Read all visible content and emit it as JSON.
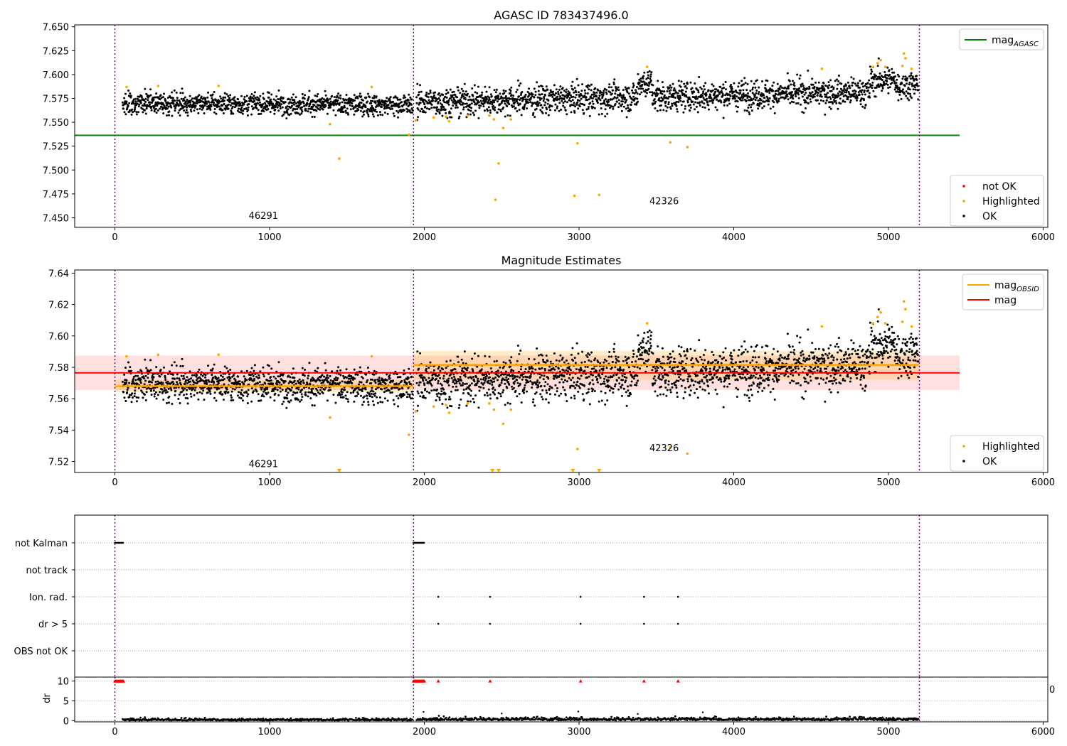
{
  "figure": {
    "title_top": "AGASC ID 783437496.0",
    "title_mid": "Magnitude Estimates"
  },
  "chart_data": [
    {
      "type": "scatter",
      "title": "AGASC ID 783437496.0",
      "xlabel": "",
      "ylabel": "",
      "xlim": [
        -260,
        6030
      ],
      "ylim": [
        7.44,
        7.652
      ],
      "xticks": [
        0,
        1000,
        2000,
        3000,
        4000,
        5000,
        6000
      ],
      "yticks": [
        7.45,
        7.475,
        7.5,
        7.525,
        7.55,
        7.575,
        7.6,
        7.625,
        7.65
      ],
      "ytick_labels": [
        "7.450",
        "7.475",
        "7.500",
        "7.525",
        "7.550",
        "7.575",
        "7.600",
        "7.625",
        "7.650"
      ],
      "grid": false,
      "vlines": [
        0,
        1930,
        5200
      ],
      "obsid_labels": [
        {
          "x": 960,
          "y": 7.449,
          "text": "46291"
        },
        {
          "x": 3550,
          "y": 7.464,
          "text": "42326"
        }
      ],
      "series": [
        {
          "name": "mag_AGASC",
          "kind": "hline",
          "y": 7.5363,
          "x_range": [
            -260,
            5460
          ],
          "color": "#008000"
        },
        {
          "name": "not OK",
          "kind": "points",
          "color": "#ff0000",
          "points": []
        },
        {
          "name": "Highlighted",
          "kind": "points",
          "color": "#ffa500",
          "points": [
            [
              75,
              7.587
            ],
            [
              280,
              7.588
            ],
            [
              670,
              7.588
            ],
            [
              1390,
              7.548
            ],
            [
              1450,
              7.512
            ],
            [
              1660,
              7.587
            ],
            [
              1900,
              7.537
            ],
            [
              1945,
              7.552
            ],
            [
              2060,
              7.555
            ],
            [
              2140,
              7.556
            ],
            [
              2160,
              7.551
            ],
            [
              2280,
              7.557
            ],
            [
              2420,
              7.557
            ],
            [
              2450,
              7.553
            ],
            [
              2460,
              7.469
            ],
            [
              2480,
              7.507
            ],
            [
              2510,
              7.544
            ],
            [
              2560,
              7.553
            ],
            [
              2970,
              7.473
            ],
            [
              2990,
              7.528
            ],
            [
              3130,
              7.474
            ],
            [
              3440,
              7.608
            ],
            [
              3590,
              7.529
            ],
            [
              3700,
              7.524
            ],
            [
              4570,
              7.606
            ],
            [
              4900,
              7.608
            ],
            [
              4930,
              7.612
            ],
            [
              4950,
              7.615
            ],
            [
              4980,
              7.608
            ],
            [
              5090,
              7.609
            ],
            [
              5100,
              7.622
            ],
            [
              5110,
              7.617
            ],
            [
              5150,
              7.606
            ]
          ]
        },
        {
          "name": "OK",
          "kind": "points",
          "color": "#000000",
          "generator": "cloud"
        }
      ],
      "legend": [
        {
          "position": "top-right",
          "entries": [
            {
              "label": "mag",
              "sub": "AGASC",
              "marker": "line",
              "color": "#008000"
            }
          ]
        },
        {
          "position": "lower-right",
          "entries": [
            {
              "label": "not OK",
              "marker": "dot",
              "color": "#ff0000"
            },
            {
              "label": "Highlighted",
              "marker": "dot",
              "color": "#ffa500"
            },
            {
              "label": "OK",
              "marker": "dot",
              "color": "#000000"
            }
          ]
        }
      ]
    },
    {
      "type": "scatter",
      "title": "Magnitude Estimates",
      "xlabel": "",
      "ylabel": "",
      "xlim": [
        -260,
        6030
      ],
      "ylim": [
        7.513,
        7.642
      ],
      "xticks": [
        0,
        1000,
        2000,
        3000,
        4000,
        5000,
        6000
      ],
      "yticks": [
        7.52,
        7.54,
        7.56,
        7.58,
        7.6,
        7.62,
        7.64
      ],
      "ytick_labels": [
        "7.52",
        "7.54",
        "7.56",
        "7.58",
        "7.60",
        "7.62",
        "7.64"
      ],
      "grid": false,
      "vlines": [
        0,
        1930,
        5200
      ],
      "obsid_labels": [
        {
          "x": 960,
          "y": 7.5165,
          "text": "46291"
        },
        {
          "x": 3550,
          "y": 7.5265,
          "text": "42326"
        }
      ],
      "bands": [
        {
          "name": "mag",
          "x_range": [
            -260,
            5460
          ],
          "y_range": [
            7.5655,
            7.5875
          ],
          "color": "#ff0000",
          "alpha": 0.12
        },
        {
          "name": "mag_OBSID 46291",
          "x_range": [
            0,
            1930
          ],
          "y_range": [
            7.564,
            7.572
          ],
          "color": "#ffa500",
          "alpha": 0.2
        },
        {
          "name": "mag_OBSID 42326",
          "x_range": [
            1930,
            5200
          ],
          "y_range": [
            7.572,
            7.5905
          ],
          "color": "#ffa500",
          "alpha": 0.2
        }
      ],
      "series": [
        {
          "name": "mag",
          "kind": "hline",
          "y": 7.5765,
          "x_range": [
            -260,
            5460
          ],
          "color": "#ff0000"
        },
        {
          "name": "mag_OBSID",
          "kind": "segments",
          "color": "#ffa500",
          "segments": [
            [
              0,
              1930,
              7.568
            ],
            [
              1930,
              5200,
              7.5815
            ]
          ]
        },
        {
          "name": "Highlighted",
          "kind": "points",
          "color": "#ffa500",
          "points": [
            [
              75,
              7.587
            ],
            [
              280,
              7.588
            ],
            [
              670,
              7.588
            ],
            [
              1390,
              7.548
            ],
            [
              1660,
              7.587
            ],
            [
              1900,
              7.537
            ],
            [
              1945,
              7.552
            ],
            [
              2060,
              7.555
            ],
            [
              2140,
              7.556
            ],
            [
              2160,
              7.551
            ],
            [
              2280,
              7.557
            ],
            [
              2420,
              7.557
            ],
            [
              2450,
              7.553
            ],
            [
              2510,
              7.544
            ],
            [
              2560,
              7.553
            ],
            [
              2990,
              7.528
            ],
            [
              3440,
              7.608
            ],
            [
              3590,
              7.529
            ],
            [
              3700,
              7.525
            ],
            [
              4570,
              7.606
            ],
            [
              4900,
              7.608
            ],
            [
              4930,
              7.612
            ],
            [
              4950,
              7.615
            ],
            [
              4980,
              7.608
            ],
            [
              5090,
              7.609
            ],
            [
              5100,
              7.622
            ],
            [
              5110,
              7.617
            ],
            [
              5150,
              7.606
            ]
          ]
        },
        {
          "name": "Highlighted (off-scale below)",
          "kind": "triangles-down",
          "color": "#ffa500",
          "x": [
            1450,
            2440,
            2480,
            2960,
            3130
          ]
        },
        {
          "name": "OK",
          "kind": "points",
          "color": "#000000",
          "generator": "cloud"
        }
      ],
      "legend": [
        {
          "position": "top-right",
          "entries": [
            {
              "label": "mag",
              "sub": "OBSID",
              "marker": "line",
              "color": "#ffa500"
            },
            {
              "label": "mag",
              "marker": "line",
              "color": "#ff0000"
            }
          ]
        },
        {
          "position": "lower-right",
          "entries": [
            {
              "label": "Highlighted",
              "marker": "dot",
              "color": "#ffa500"
            },
            {
              "label": "OK",
              "marker": "dot",
              "color": "#000000"
            }
          ]
        }
      ]
    },
    {
      "type": "scatter",
      "title": "",
      "xlabel": "",
      "ylabel": "",
      "xlim": [
        -260,
        6030
      ],
      "categories": [
        "not Kalman",
        "not track",
        "Ion. rad.",
        "dr > 5",
        "OBS not OK"
      ],
      "grid": "dotted",
      "vlines": [
        0,
        1930,
        5200
      ],
      "flags": {
        "not Kalman": {
          "ranges": [
            [
              0,
              55
            ],
            [
              1930,
              2000
            ]
          ],
          "color": "#000000"
        },
        "not track": {
          "ranges": [],
          "color": "#000000"
        },
        "Ion. rad.": {
          "x": [
            2090,
            2425,
            3010,
            3420,
            3640
          ],
          "color": "#000000"
        },
        "dr > 5": {
          "x": [
            2090,
            2425,
            3010,
            3420,
            3640
          ],
          "color": "#000000"
        },
        "OBS not OK": {
          "x": [],
          "color": "#000000"
        }
      }
    },
    {
      "type": "scatter",
      "title": "",
      "xlabel": "",
      "ylabel": "dr",
      "xlim": [
        -260,
        6030
      ],
      "ylim": [
        -0.3,
        11
      ],
      "yticks": [
        0,
        5,
        10
      ],
      "ytick_labels": [
        "0",
        "5",
        "10"
      ],
      "xticks": [
        0,
        1000,
        2000,
        3000,
        4000,
        5000,
        6000
      ],
      "grid": "dotted",
      "vlines": [
        0,
        1930,
        5200
      ],
      "right_label": "0",
      "series": [
        {
          "name": "dr > 5 (capped)",
          "kind": "triangles-up",
          "color": "#ff0000",
          "y": 10,
          "x_ranges": [
            [
              0,
              55
            ],
            [
              1930,
              2000
            ]
          ],
          "x": [
            2090,
            2425,
            3010,
            3420,
            3640
          ]
        },
        {
          "name": "dr",
          "kind": "points",
          "color": "#000000",
          "generator": "dr-cloud",
          "spikes": [
            [
              1995,
              2.2
            ],
            [
              2500,
              1.8
            ],
            [
              2995,
              2.3
            ],
            [
              3380,
              1.7
            ],
            [
              3800,
              2.1
            ]
          ]
        }
      ]
    }
  ]
}
